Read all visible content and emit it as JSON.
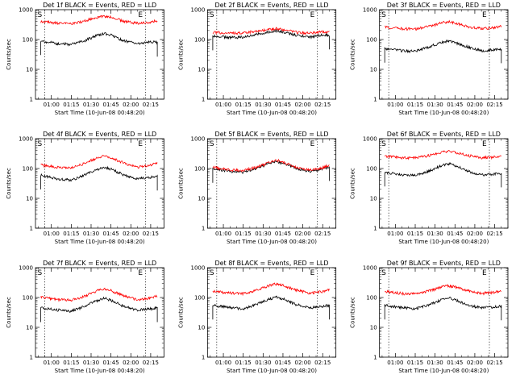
{
  "figure": {
    "colors": {
      "events": "#000000",
      "lld": "#ff0000",
      "axis": "#000000"
    },
    "markers": {
      "start": "S",
      "end": "E"
    },
    "marker_times": [
      "00:55",
      "02:11"
    ]
  },
  "chart_data": [
    {
      "type": "line",
      "title": "Det 1f BLACK = Events, RED = LLD",
      "xlabel": "Start Time (10-Jun-08 00:48:20)",
      "ylabel": "Counts/sec",
      "x_ticks": [
        "01:00",
        "01:15",
        "01:30",
        "01:45",
        "02:00",
        "02:15"
      ],
      "y_ticks": [
        "1",
        "10",
        "100",
        "1000"
      ],
      "yscale": "log",
      "ylim": [
        1,
        1000
      ],
      "xlim": [
        "00:48",
        "02:25"
      ],
      "x": [
        "00:52",
        "01:05",
        "01:15",
        "01:25",
        "01:35",
        "01:40",
        "01:45",
        "01:55",
        "02:05",
        "02:15",
        "02:20"
      ],
      "series": [
        {
          "name": "BLACK",
          "values": [
            90,
            72,
            68,
            90,
            140,
            160,
            140,
            90,
            72,
            85,
            80
          ]
        },
        {
          "name": "RED",
          "values": [
            400,
            350,
            330,
            420,
            560,
            600,
            560,
            400,
            350,
            380,
            430
          ]
        }
      ]
    },
    {
      "type": "line",
      "title": "Det 2f BLACK = Events, RED = LLD",
      "xlabel": "Start Time (10-Jun-08 00:48:20)",
      "ylabel": "Counts/sec",
      "x_ticks": [
        "01:00",
        "01:15",
        "01:30",
        "01:45",
        "02:00",
        "02:15"
      ],
      "y_ticks": [
        "1",
        "10",
        "100",
        "1000"
      ],
      "yscale": "log",
      "ylim": [
        1,
        1000
      ],
      "xlim": [
        "00:48",
        "02:25"
      ],
      "x": [
        "00:52",
        "01:05",
        "01:15",
        "01:25",
        "01:35",
        "01:40",
        "01:45",
        "01:55",
        "02:05",
        "02:15",
        "02:20"
      ],
      "series": [
        {
          "name": "BLACK",
          "values": [
            130,
            115,
            120,
            150,
            185,
            195,
            180,
            140,
            120,
            145,
            140
          ]
        },
        {
          "name": "RED",
          "values": [
            175,
            160,
            165,
            190,
            215,
            230,
            215,
            175,
            160,
            180,
            175
          ]
        }
      ]
    },
    {
      "type": "line",
      "title": "Det 3f BLACK = Events, RED = LLD",
      "xlabel": "Start Time (10-Jun-08 00:48:20)",
      "ylabel": "Counts/sec",
      "x_ticks": [
        "01:00",
        "01:15",
        "01:30",
        "01:45",
        "02:00",
        "02:15"
      ],
      "y_ticks": [
        "1",
        "10",
        "100",
        "1000"
      ],
      "yscale": "log",
      "ylim": [
        1,
        1000
      ],
      "xlim": [
        "00:48",
        "02:25"
      ],
      "x": [
        "00:52",
        "01:05",
        "01:15",
        "01:25",
        "01:35",
        "01:40",
        "01:45",
        "01:55",
        "02:05",
        "02:15",
        "02:20"
      ],
      "series": [
        {
          "name": "BLACK",
          "values": [
            50,
            42,
            40,
            55,
            80,
            90,
            80,
            55,
            42,
            45,
            48
          ]
        },
        {
          "name": "RED",
          "values": [
            260,
            230,
            225,
            270,
            360,
            390,
            360,
            270,
            230,
            250,
            270
          ]
        }
      ]
    },
    {
      "type": "line",
      "title": "Det 4f BLACK = Events, RED = LLD",
      "xlabel": "Start Time (10-Jun-08 00:48:20)",
      "ylabel": "Counts/sec",
      "x_ticks": [
        "01:00",
        "01:15",
        "01:30",
        "01:45",
        "02:00",
        "02:15"
      ],
      "y_ticks": [
        "1",
        "10",
        "100",
        "1000"
      ],
      "yscale": "log",
      "ylim": [
        1,
        1000
      ],
      "xlim": [
        "00:48",
        "02:25"
      ],
      "x": [
        "00:52",
        "01:05",
        "01:15",
        "01:25",
        "01:35",
        "01:40",
        "01:45",
        "01:55",
        "02:05",
        "02:15",
        "02:20"
      ],
      "series": [
        {
          "name": "BLACK",
          "values": [
            60,
            45,
            40,
            60,
            95,
            110,
            95,
            60,
            45,
            50,
            55
          ]
        },
        {
          "name": "RED",
          "values": [
            130,
            110,
            105,
            150,
            230,
            260,
            230,
            150,
            110,
            130,
            155
          ]
        }
      ]
    },
    {
      "type": "line",
      "title": "Det 5f BLACK = Events, RED = LLD",
      "xlabel": "Start Time (10-Jun-08 00:48:20)",
      "ylabel": "Counts/sec",
      "x_ticks": [
        "01:00",
        "01:15",
        "01:30",
        "01:45",
        "02:00",
        "02:15"
      ],
      "y_ticks": [
        "1",
        "10",
        "100",
        "1000"
      ],
      "yscale": "log",
      "ylim": [
        1,
        1000
      ],
      "xlim": [
        "00:48",
        "02:25"
      ],
      "x": [
        "00:52",
        "01:05",
        "01:15",
        "01:25",
        "01:35",
        "01:40",
        "01:45",
        "01:55",
        "02:05",
        "02:15",
        "02:20"
      ],
      "series": [
        {
          "name": "BLACK",
          "values": [
            100,
            80,
            75,
            100,
            150,
            170,
            150,
            100,
            80,
            95,
            115
          ]
        },
        {
          "name": "RED",
          "values": [
            110,
            90,
            85,
            110,
            165,
            190,
            165,
            110,
            90,
            105,
            130
          ]
        }
      ]
    },
    {
      "type": "line",
      "title": "Det 6f BLACK = Events, RED = LLD",
      "xlabel": "Start Time (10-Jun-08 00:48:20)",
      "ylabel": "Counts/sec",
      "x_ticks": [
        "01:00",
        "01:15",
        "01:30",
        "01:45",
        "02:00",
        "02:15"
      ],
      "y_ticks": [
        "1",
        "10",
        "100",
        "1000"
      ],
      "yscale": "log",
      "ylim": [
        1,
        1000
      ],
      "xlim": [
        "00:48",
        "02:25"
      ],
      "x": [
        "00:52",
        "01:05",
        "01:15",
        "01:25",
        "01:35",
        "01:40",
        "01:45",
        "01:55",
        "02:05",
        "02:15",
        "02:20"
      ],
      "series": [
        {
          "name": "BLACK",
          "values": [
            75,
            62,
            60,
            80,
            125,
            145,
            125,
            80,
            62,
            65,
            70
          ]
        },
        {
          "name": "RED",
          "values": [
            260,
            230,
            225,
            270,
            350,
            380,
            350,
            270,
            230,
            240,
            260
          ]
        }
      ]
    },
    {
      "type": "line",
      "title": "Det 7f BLACK = Events, RED = LLD",
      "xlabel": "Start Time (10-Jun-08 00:48:20)",
      "ylabel": "Counts/sec",
      "x_ticks": [
        "01:00",
        "01:15",
        "01:30",
        "01:45",
        "02:00",
        "02:15"
      ],
      "y_ticks": [
        "1",
        "10",
        "100",
        "1000"
      ],
      "yscale": "log",
      "ylim": [
        1,
        1000
      ],
      "xlim": [
        "00:48",
        "02:25"
      ],
      "x": [
        "00:52",
        "01:05",
        "01:15",
        "01:25",
        "01:35",
        "01:40",
        "01:45",
        "01:55",
        "02:05",
        "02:15",
        "02:20"
      ],
      "series": [
        {
          "name": "BLACK",
          "values": [
            45,
            38,
            35,
            50,
            80,
            95,
            80,
            50,
            38,
            42,
            45
          ]
        },
        {
          "name": "RED",
          "values": [
            100,
            85,
            80,
            110,
            170,
            195,
            170,
            110,
            85,
            95,
            110
          ]
        }
      ]
    },
    {
      "type": "line",
      "title": "Det 8f BLACK = Events, RED = LLD",
      "xlabel": "Start Time (10-Jun-08 00:48:20)",
      "ylabel": "Counts/sec",
      "x_ticks": [
        "01:00",
        "01:15",
        "01:30",
        "01:45",
        "02:00",
        "02:15"
      ],
      "y_ticks": [
        "1",
        "10",
        "100",
        "1000"
      ],
      "yscale": "log",
      "ylim": [
        1,
        1000
      ],
      "xlim": [
        "00:48",
        "02:25"
      ],
      "x": [
        "00:52",
        "01:05",
        "01:15",
        "01:25",
        "01:35",
        "01:40",
        "01:45",
        "01:55",
        "02:05",
        "02:15",
        "02:20"
      ],
      "series": [
        {
          "name": "BLACK",
          "values": [
            55,
            45,
            42,
            58,
            90,
            105,
            90,
            58,
            45,
            50,
            55
          ]
        },
        {
          "name": "RED",
          "values": [
            165,
            140,
            135,
            175,
            255,
            285,
            255,
            175,
            140,
            155,
            180
          ]
        }
      ]
    },
    {
      "type": "line",
      "title": "Det 9f BLACK = Events, RED = LLD",
      "xlabel": "Start Time (10-Jun-08 00:48:20)",
      "ylabel": "Counts/sec",
      "x_ticks": [
        "01:00",
        "01:15",
        "01:30",
        "01:45",
        "02:00",
        "02:15"
      ],
      "y_ticks": [
        "1",
        "10",
        "100",
        "1000"
      ],
      "yscale": "log",
      "ylim": [
        1,
        1000
      ],
      "xlim": [
        "00:48",
        "02:25"
      ],
      "x": [
        "00:52",
        "01:05",
        "01:15",
        "01:25",
        "01:35",
        "01:40",
        "01:45",
        "01:55",
        "02:05",
        "02:15",
        "02:20"
      ],
      "series": [
        {
          "name": "BLACK",
          "values": [
            55,
            45,
            42,
            55,
            85,
            100,
            85,
            55,
            45,
            48,
            52
          ]
        },
        {
          "name": "RED",
          "values": [
            160,
            135,
            130,
            165,
            225,
            250,
            225,
            165,
            135,
            150,
            170
          ]
        }
      ]
    }
  ]
}
